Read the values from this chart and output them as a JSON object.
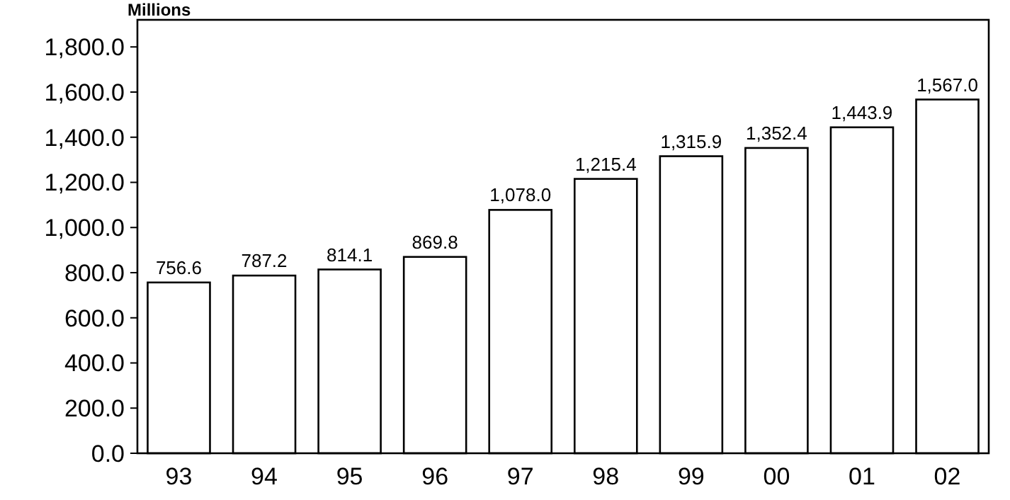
{
  "chart_data": {
    "type": "bar",
    "ylabel": "Millions",
    "categories": [
      "93",
      "94",
      "95",
      "96",
      "97",
      "98",
      "99",
      "00",
      "01",
      "02"
    ],
    "values": [
      756.6,
      787.2,
      814.1,
      869.8,
      1078.0,
      1215.4,
      1315.9,
      1352.4,
      1443.9,
      1567.0
    ],
    "value_labels": [
      "756.6",
      "787.2",
      "814.1",
      "869.8",
      "1,078.0",
      "1,215.4",
      "1,315.9",
      "1,352.4",
      "1,443.9",
      "1,567.0"
    ],
    "color": "#ffffff",
    "ylim": [
      0,
      1920
    ],
    "yticks": [
      {
        "value": 0,
        "label": "0.0"
      },
      {
        "value": 200,
        "label": "200.0"
      },
      {
        "value": 400,
        "label": "400.0"
      },
      {
        "value": 600,
        "label": "600.0"
      },
      {
        "value": 800,
        "label": "800.0"
      },
      {
        "value": 1000,
        "label": "1,000.0"
      },
      {
        "value": 1200,
        "label": "1,200.0"
      },
      {
        "value": 1400,
        "label": "1,400.0"
      },
      {
        "value": 1600,
        "label": "1,600.0"
      },
      {
        "value": 1800,
        "label": "1,800.0"
      }
    ],
    "grid": false
  }
}
